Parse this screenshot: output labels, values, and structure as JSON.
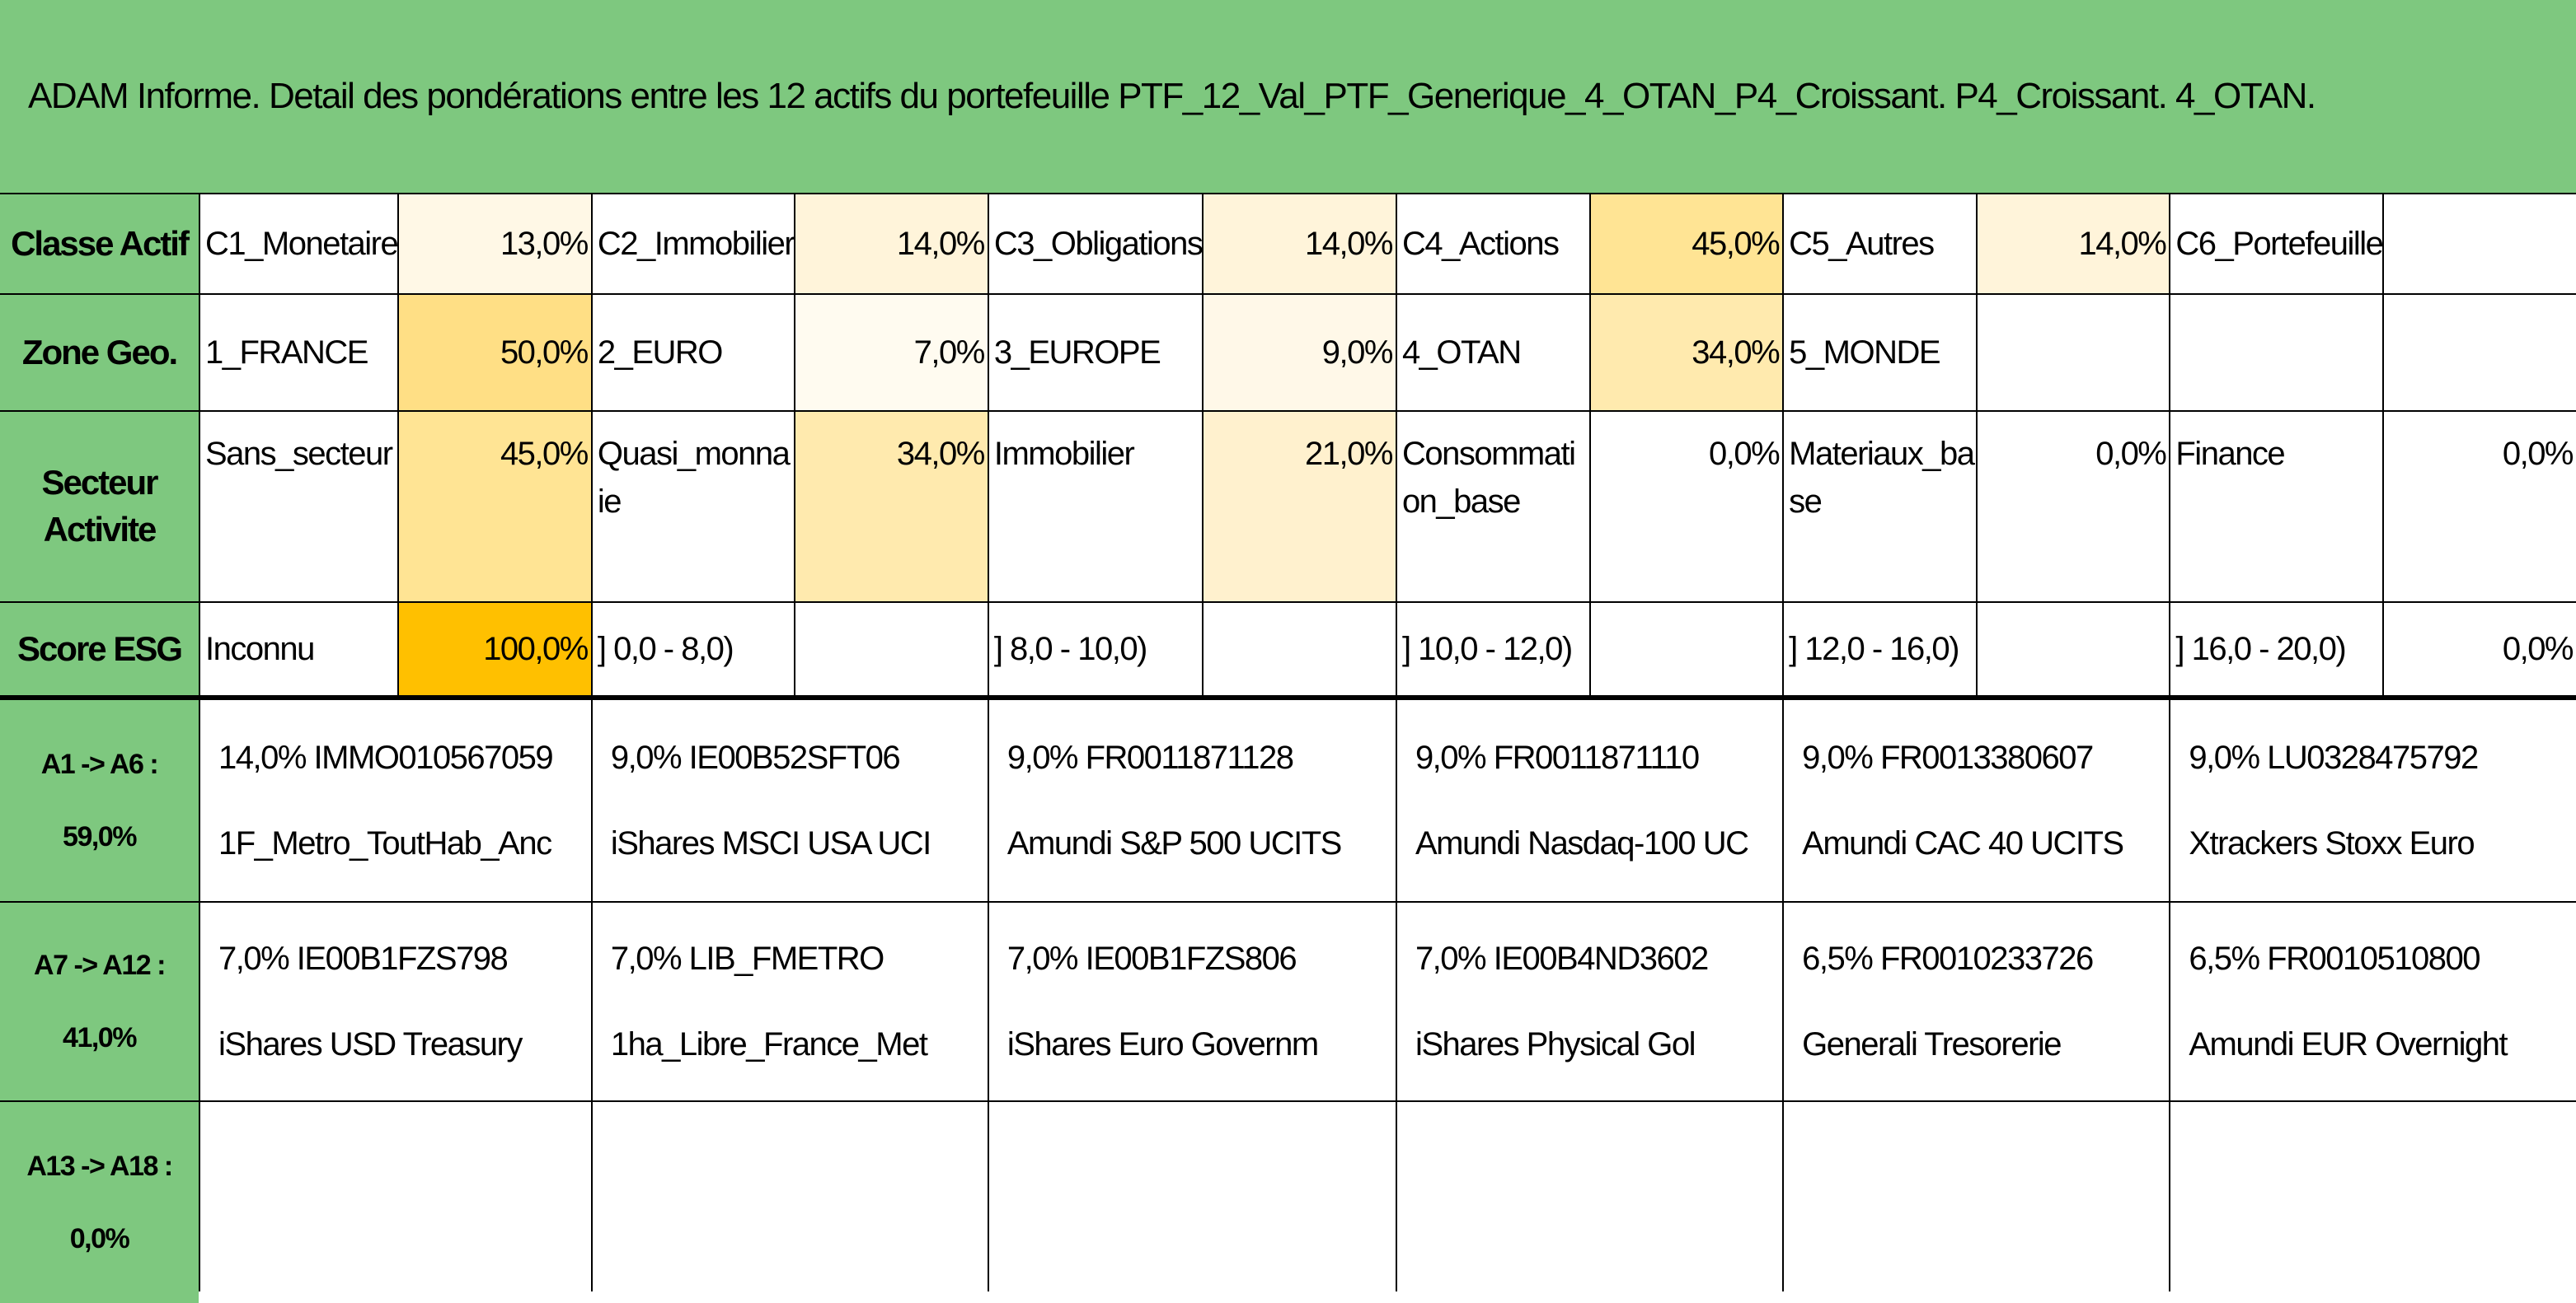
{
  "header": {
    "title": "ADAM Informe. Detail des pondérations entre les 12 actifs du portefeuille PTF_12_Val_PTF_Generique_4_OTAN_P4_Croissant. P4_Croissant. 4_OTAN."
  },
  "table": {
    "rows": [
      {
        "label": "Classe Actif",
        "cells": [
          {
            "name": "C1_Monetaire",
            "value": "13,0%",
            "color": "#fff8e6"
          },
          {
            "name": "C2_Immobilier",
            "value": "14,0%",
            "color": "#fff4da"
          },
          {
            "name": "C3_Obligations",
            "value": "14,0%",
            "color": "#fff4da"
          },
          {
            "name": "C4_Actions",
            "value": "45,0%",
            "color": "#ffe494"
          },
          {
            "name": "C5_Autres",
            "value": "14,0%",
            "color": "#fff4da"
          },
          {
            "name": "C6_Portefeuille"
          }
        ]
      },
      {
        "label": "Zone Geo.",
        "cells": [
          {
            "name": "1_FRANCE",
            "value": "50,0%",
            "color": "#ffdf85"
          },
          {
            "name": "2_EURO",
            "value": "7,0%",
            "color": "#fffbf0"
          },
          {
            "name": "3_EUROPE",
            "value": "9,0%",
            "color": "#fff8e8"
          },
          {
            "name": "4_OTAN",
            "value": "34,0%",
            "color": "#ffeaae"
          },
          {
            "name": "5_MONDE"
          }
        ]
      },
      {
        "label": "Secteur Activite",
        "cells": [
          {
            "name": "Sans_secteur",
            "value": "45,0%",
            "color": "#ffe494"
          },
          {
            "name": "Quasi_monnaie",
            "value": "34,0%",
            "color": "#ffeaae"
          },
          {
            "name": "Immobilier",
            "value": "21,0%",
            "color": "#fff1ce"
          },
          {
            "name": "Consommation_base",
            "value": "0,0%",
            "color": "#ffffff"
          },
          {
            "name": "Materiaux_base",
            "value": "0,0%",
            "color": "#ffffff"
          },
          {
            "name": "Finance",
            "value": "0,0%",
            "color": "#ffffff"
          }
        ]
      },
      {
        "label": "Score ESG",
        "cells": [
          {
            "name": "Inconnu",
            "value": "100,0%",
            "color": "#ffc000"
          },
          {
            "name": "] 0,0 - 8,0)"
          },
          {
            "name": "] 8,0 - 10,0)"
          },
          {
            "name": "] 10,0 - 12,0)"
          },
          {
            "name": "] 12,0 - 16,0)"
          },
          {
            "name": "] 16,0 - 20,0)",
            "value": "0,0%",
            "color": "#ffffff"
          }
        ]
      }
    ]
  },
  "assets": {
    "rows": [
      {
        "label": "A1 -> A6 :",
        "total": "59,0%",
        "items": [
          {
            "line1": "14,0% IMMO010567059",
            "line2": "1F_Metro_ToutHab_Anc"
          },
          {
            "line1": "9,0% IE00B52SFT06",
            "line2": "iShares MSCI USA UCI"
          },
          {
            "line1": "9,0% FR0011871128",
            "line2": "Amundi S&P 500 UCITS"
          },
          {
            "line1": "9,0% FR0011871110",
            "line2": "Amundi Nasdaq-100 UC"
          },
          {
            "line1": "9,0% FR0013380607",
            "line2": "Amundi CAC 40 UCITS"
          },
          {
            "line1": "9,0% LU0328475792",
            "line2": "Xtrackers Stoxx Euro"
          }
        ]
      },
      {
        "label": "A7 -> A12 :",
        "total": "41,0%",
        "items": [
          {
            "line1": "7,0% IE00B1FZS798",
            "line2": "iShares USD Treasury"
          },
          {
            "line1": "7,0% LIB_FMETRO",
            "line2": "1ha_Libre_France_Met"
          },
          {
            "line1": "7,0% IE00B1FZS806",
            "line2": "iShares Euro Governm"
          },
          {
            "line1": "7,0% IE00B4ND3602",
            "line2": "iShares Physical Gol"
          },
          {
            "line1": "6,5% FR0010233726",
            "line2": "Generali Tresorerie"
          },
          {
            "line1": "6,5% FR0010510800",
            "line2": "Amundi EUR Overnight"
          }
        ]
      },
      {
        "label": "A13 -> A18 :",
        "total": "0,0%",
        "items": []
      }
    ]
  }
}
